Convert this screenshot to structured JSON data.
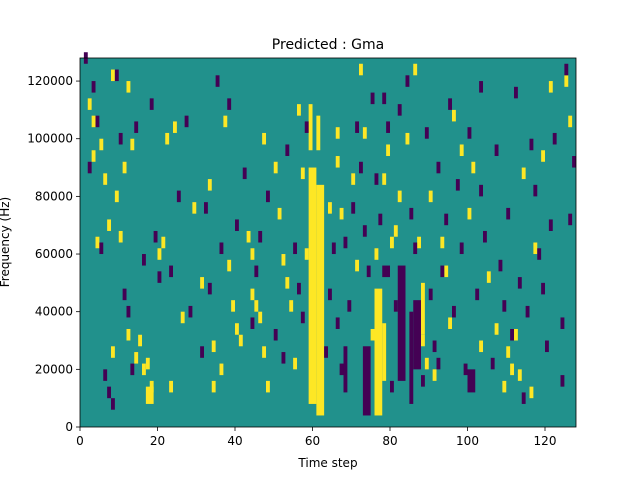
{
  "chart_data": {
    "type": "heatmap",
    "title": "Predicted : Gma",
    "xlabel": "Time step",
    "ylabel": "Frequency (Hz)",
    "xlim": [
      0,
      128
    ],
    "ylim": [
      0,
      128000
    ],
    "x_ticks": [
      "0",
      "20",
      "40",
      "60",
      "80",
      "100",
      "120"
    ],
    "x_tick_values": [
      0,
      20,
      40,
      60,
      80,
      100,
      120
    ],
    "y_ticks": [
      "0",
      "20000",
      "40000",
      "60000",
      "80000",
      "100000",
      "120000"
    ],
    "y_tick_values": [
      0,
      20000,
      40000,
      60000,
      80000,
      100000,
      120000
    ],
    "grid": false,
    "background_value": 0,
    "colors": {
      "background": "#21918c",
      "high": "#fde725",
      "low": "#440154"
    },
    "high_bands": [
      {
        "t0": 59,
        "t1": 61,
        "f0": 8000,
        "f1": 90000
      },
      {
        "t0": 61,
        "t1": 63,
        "f0": 4000,
        "f1": 84000
      },
      {
        "t0": 59,
        "t1": 60,
        "f0": 96000,
        "f1": 112000
      },
      {
        "t0": 61,
        "t1": 62,
        "f0": 96000,
        "f1": 108000
      },
      {
        "t0": 76,
        "t1": 78,
        "f0": 4000,
        "f1": 48000
      },
      {
        "t0": 78,
        "t1": 79,
        "f0": 16000,
        "f1": 36000
      },
      {
        "t0": 88,
        "t1": 89,
        "f0": 32000,
        "f1": 50000
      },
      {
        "t0": 17,
        "t1": 19,
        "f0": 8000,
        "f1": 14000
      }
    ],
    "low_bands": [
      {
        "t0": 68,
        "t1": 69,
        "f0": 12000,
        "f1": 28000
      },
      {
        "t0": 73,
        "t1": 75,
        "f0": 4000,
        "f1": 28000
      },
      {
        "t0": 82,
        "t1": 84,
        "f0": 16000,
        "f1": 56000
      },
      {
        "t0": 85,
        "t1": 86,
        "f0": 8000,
        "f1": 40000
      },
      {
        "t0": 86,
        "t1": 88,
        "f0": 20000,
        "f1": 44000
      },
      {
        "t0": 100,
        "t1": 102,
        "f0": 12000,
        "f1": 20000
      },
      {
        "t0": 78,
        "t1": 80,
        "f0": 52000,
        "f1": 56000
      }
    ],
    "high_cells": [
      [
        2,
        110
      ],
      [
        3,
        104
      ],
      [
        3,
        92
      ],
      [
        4,
        62
      ],
      [
        5,
        96
      ],
      [
        6,
        84
      ],
      [
        7,
        68
      ],
      [
        8,
        120
      ],
      [
        8,
        24
      ],
      [
        9,
        78
      ],
      [
        10,
        64
      ],
      [
        11,
        88
      ],
      [
        12,
        116
      ],
      [
        13,
        96
      ],
      [
        14,
        22
      ],
      [
        15,
        28
      ],
      [
        16,
        18
      ],
      [
        17,
        20
      ],
      [
        18,
        12
      ],
      [
        20,
        58
      ],
      [
        21,
        62
      ],
      [
        22,
        98
      ],
      [
        24,
        102
      ],
      [
        26,
        36
      ],
      [
        29,
        74
      ],
      [
        31,
        48
      ],
      [
        33,
        82
      ],
      [
        34,
        12
      ],
      [
        37,
        104
      ],
      [
        38,
        54
      ],
      [
        39,
        40
      ],
      [
        40,
        32
      ],
      [
        41,
        28
      ],
      [
        43,
        64
      ],
      [
        44,
        44
      ],
      [
        45,
        40
      ],
      [
        46,
        36
      ],
      [
        47,
        24
      ],
      [
        48,
        12
      ],
      [
        50,
        88
      ],
      [
        51,
        72
      ],
      [
        52,
        56
      ],
      [
        53,
        48
      ],
      [
        54,
        40
      ],
      [
        55,
        20
      ],
      [
        56,
        108
      ],
      [
        57,
        86
      ],
      [
        58,
        58
      ],
      [
        64,
        74
      ],
      [
        66,
        90
      ],
      [
        66,
        100
      ],
      [
        67,
        72
      ],
      [
        70,
        84
      ],
      [
        71,
        54
      ],
      [
        72,
        122
      ],
      [
        73,
        100
      ],
      [
        75,
        30
      ],
      [
        76,
        58
      ],
      [
        78,
        84
      ],
      [
        79,
        94
      ],
      [
        80,
        62
      ],
      [
        81,
        66
      ],
      [
        82,
        78
      ],
      [
        84,
        98
      ],
      [
        86,
        122
      ],
      [
        87,
        62
      ],
      [
        88,
        28
      ],
      [
        89,
        20
      ],
      [
        90,
        78
      ],
      [
        91,
        16
      ],
      [
        93,
        62
      ],
      [
        94,
        52
      ],
      [
        95,
        34
      ],
      [
        96,
        106
      ],
      [
        98,
        94
      ],
      [
        100,
        72
      ],
      [
        101,
        88
      ],
      [
        103,
        26
      ],
      [
        105,
        50
      ],
      [
        107,
        32
      ],
      [
        109,
        12
      ],
      [
        110,
        24
      ],
      [
        111,
        18
      ],
      [
        112,
        30
      ],
      [
        113,
        16
      ],
      [
        114,
        86
      ],
      [
        116,
        10
      ],
      [
        117,
        60
      ],
      [
        119,
        92
      ],
      [
        121,
        116
      ],
      [
        125,
        118
      ],
      [
        126,
        104
      ],
      [
        34,
        26
      ],
      [
        36,
        18
      ],
      [
        44,
        58
      ],
      [
        47,
        98
      ],
      [
        12,
        30
      ],
      [
        23,
        12
      ]
    ],
    "low_cells": [
      [
        1,
        126
      ],
      [
        2,
        88
      ],
      [
        3,
        116
      ],
      [
        4,
        104
      ],
      [
        5,
        60
      ],
      [
        6,
        16
      ],
      [
        7,
        10
      ],
      [
        8,
        6
      ],
      [
        9,
        120
      ],
      [
        10,
        98
      ],
      [
        11,
        44
      ],
      [
        12,
        38
      ],
      [
        13,
        18
      ],
      [
        14,
        102
      ],
      [
        16,
        56
      ],
      [
        18,
        110
      ],
      [
        19,
        64
      ],
      [
        20,
        50
      ],
      [
        23,
        52
      ],
      [
        25,
        78
      ],
      [
        27,
        104
      ],
      [
        28,
        38
      ],
      [
        31,
        24
      ],
      [
        32,
        74
      ],
      [
        33,
        46
      ],
      [
        35,
        118
      ],
      [
        36,
        60
      ],
      [
        38,
        110
      ],
      [
        40,
        68
      ],
      [
        42,
        86
      ],
      [
        44,
        34
      ],
      [
        45,
        52
      ],
      [
        46,
        64
      ],
      [
        48,
        78
      ],
      [
        50,
        30
      ],
      [
        52,
        22
      ],
      [
        53,
        94
      ],
      [
        55,
        60
      ],
      [
        56,
        46
      ],
      [
        57,
        36
      ],
      [
        58,
        102
      ],
      [
        63,
        24
      ],
      [
        64,
        44
      ],
      [
        65,
        60
      ],
      [
        66,
        34
      ],
      [
        67,
        18
      ],
      [
        68,
        62
      ],
      [
        69,
        40
      ],
      [
        70,
        74
      ],
      [
        71,
        102
      ],
      [
        72,
        88
      ],
      [
        73,
        66
      ],
      [
        74,
        52
      ],
      [
        75,
        112
      ],
      [
        76,
        84
      ],
      [
        77,
        70
      ],
      [
        79,
        102
      ],
      [
        80,
        12
      ],
      [
        81,
        40
      ],
      [
        82,
        108
      ],
      [
        84,
        118
      ],
      [
        85,
        72
      ],
      [
        86,
        60
      ],
      [
        89,
        100
      ],
      [
        90,
        44
      ],
      [
        91,
        26
      ],
      [
        92,
        88
      ],
      [
        93,
        52
      ],
      [
        94,
        70
      ],
      [
        95,
        110
      ],
      [
        96,
        38
      ],
      [
        97,
        82
      ],
      [
        98,
        60
      ],
      [
        99,
        18
      ],
      [
        100,
        100
      ],
      [
        102,
        44
      ],
      [
        103,
        80
      ],
      [
        104,
        64
      ],
      [
        106,
        20
      ],
      [
        107,
        94
      ],
      [
        108,
        54
      ],
      [
        109,
        40
      ],
      [
        110,
        72
      ],
      [
        111,
        30
      ],
      [
        112,
        114
      ],
      [
        113,
        48
      ],
      [
        114,
        8
      ],
      [
        115,
        38
      ],
      [
        116,
        96
      ],
      [
        117,
        80
      ],
      [
        118,
        58
      ],
      [
        119,
        46
      ],
      [
        120,
        26
      ],
      [
        121,
        68
      ],
      [
        122,
        98
      ],
      [
        124,
        34
      ],
      [
        126,
        70
      ],
      [
        127,
        90
      ],
      [
        124,
        14
      ],
      [
        125,
        122
      ],
      [
        103,
        116
      ],
      [
        78,
        112
      ],
      [
        88,
        14
      ],
      [
        92,
        20
      ]
    ]
  }
}
